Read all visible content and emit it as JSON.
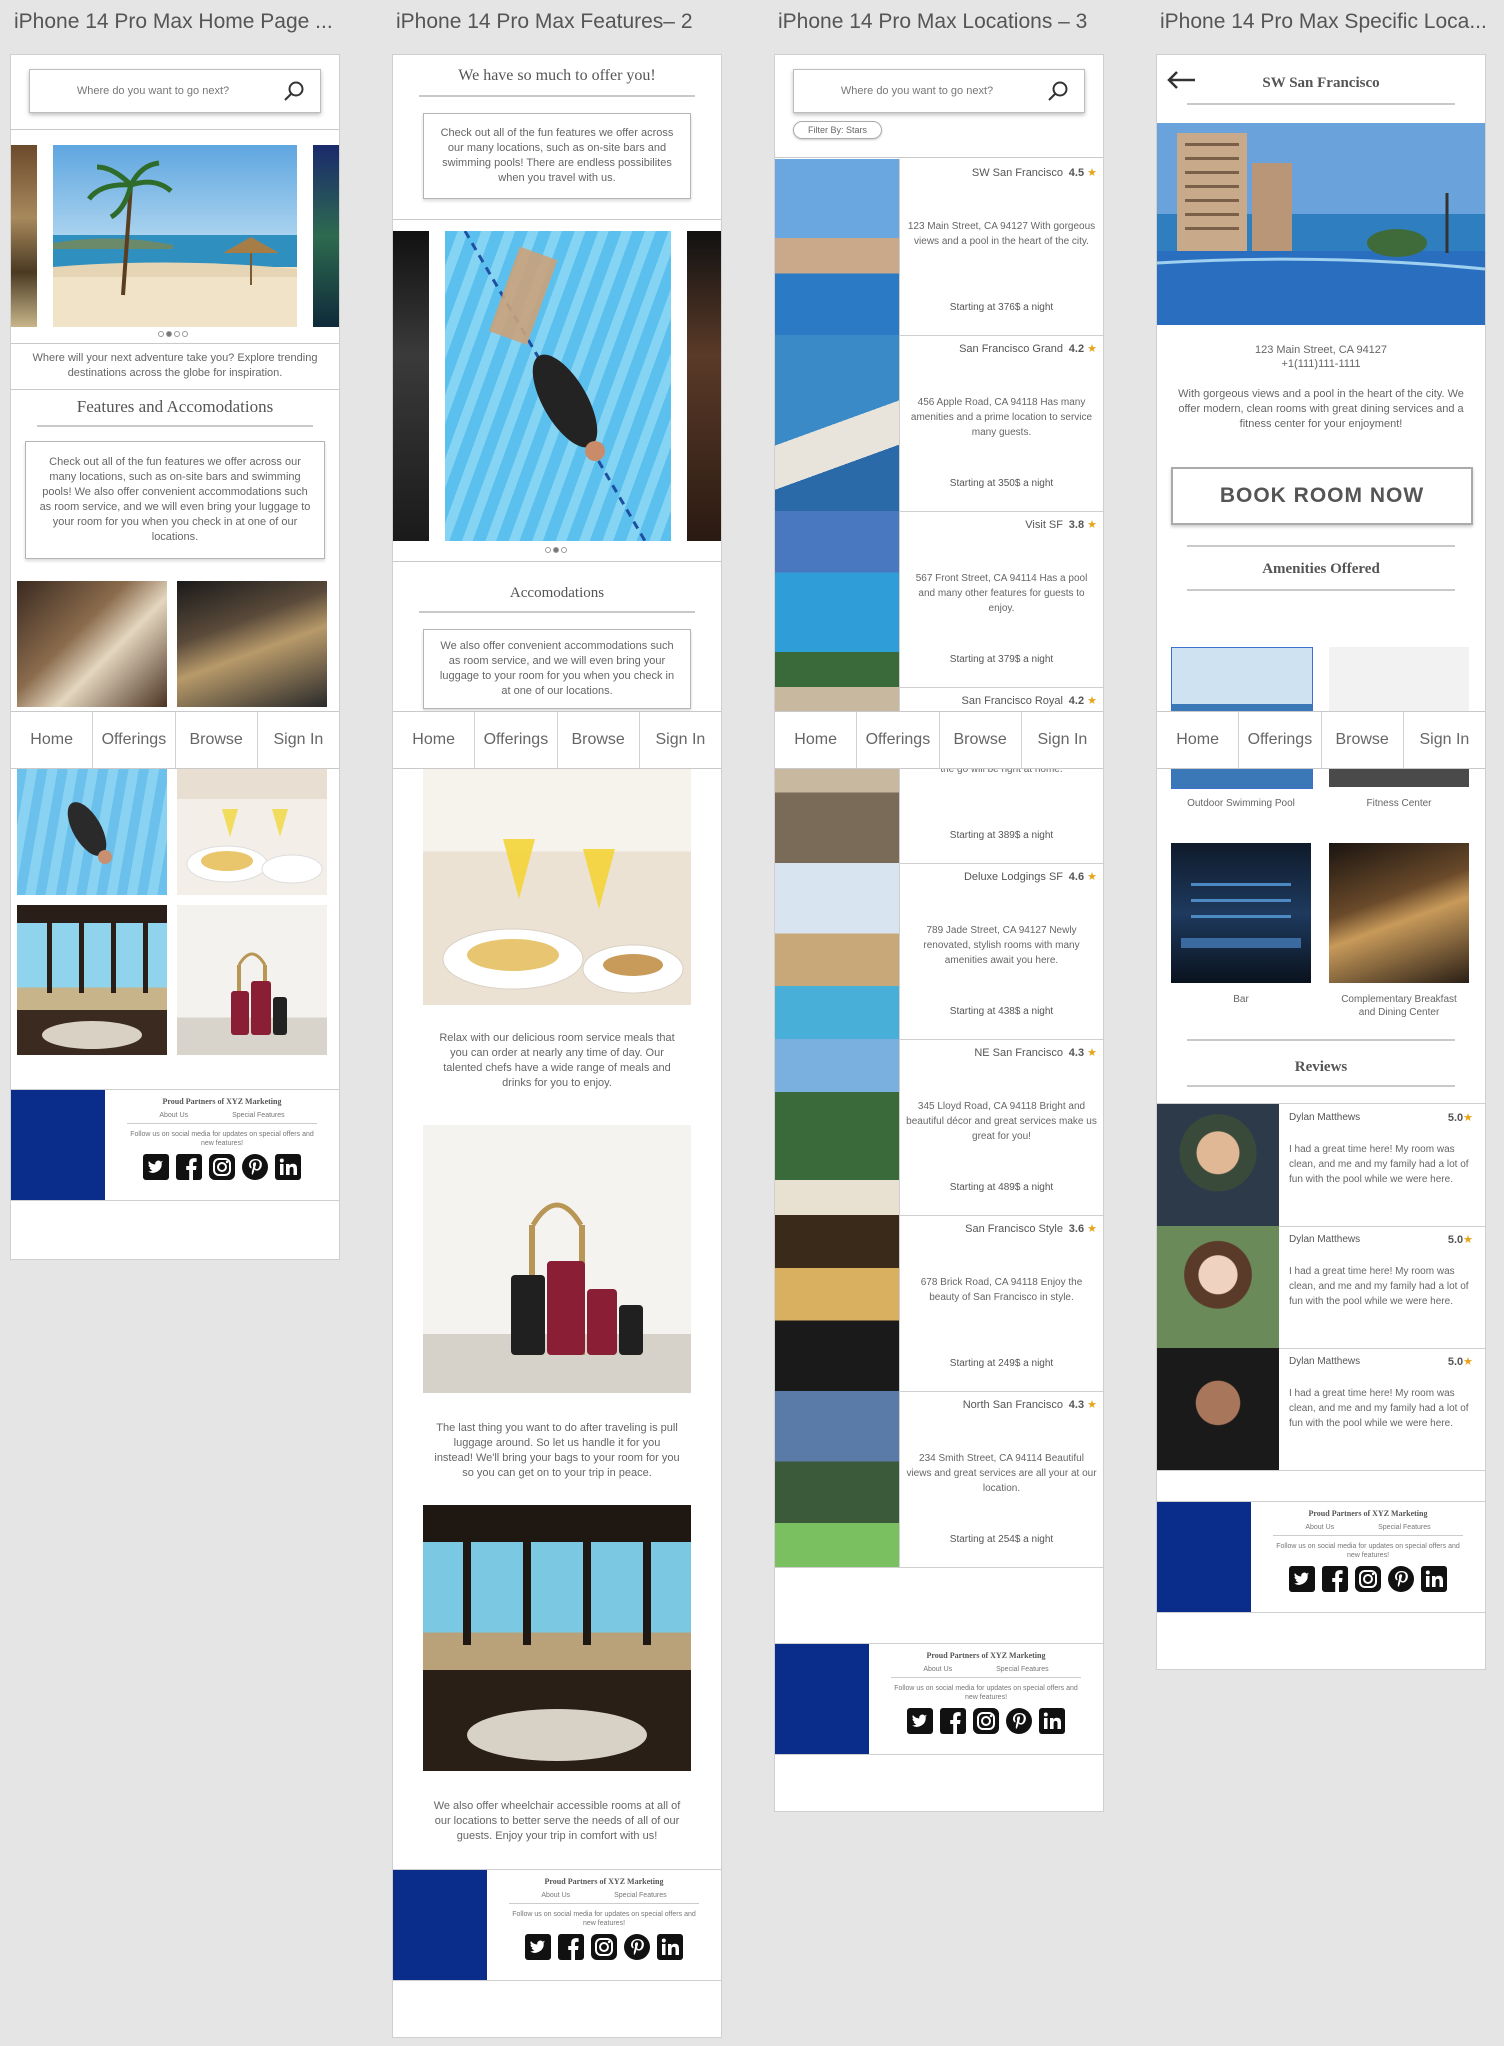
{
  "frame_titles": [
    "iPhone 14 Pro Max Home Page ...",
    "iPhone 14 Pro Max Features– 2",
    "iPhone 14 Pro Max Locations – 3",
    "iPhone 14 Pro Max Specific Loca..."
  ],
  "nav": [
    "Home",
    "Offerings",
    "Browse",
    "Sign In"
  ],
  "footer": {
    "title": "Proud Partners of XYZ Marketing",
    "link_about": "About Us",
    "link_special": "Special Features",
    "follow": "Follow us on social media for updates on special offers and new features!",
    "icons": [
      "twitter-icon",
      "facebook-icon",
      "instagram-icon",
      "pinterest-icon",
      "linkedin-icon"
    ],
    "brand_color": "#0a2d8c"
  },
  "home": {
    "search_placeholder": "Where do you want to go next?",
    "intro": "Where will your next adventure take you? Explore trending destinations across the globe for inspiration.",
    "features_title": "Features and Accomodations",
    "features_text": "Check out all of the fun features we offer across our many locations, such as on-site bars and swimming pools! We also offer convenient accommodations such as room service, and we will even bring your luggage to your room for you when you check in at one of our locations."
  },
  "features": {
    "header": "We have so much to offer you!",
    "intro": "Check out all of the fun features we offer across our many locations, such as on-site bars and swimming pools! There are endless possibilites when you travel with us.",
    "accom_title": "Accomodations",
    "accom_text": "We also offer convenient accommodations such as room service, and we will even bring your luggage to your room for you when you check in at one of our locations.",
    "room_service": "Relax with our delicious room service meals that you can order at nearly any time of day. Our talented chefs have a wide range of meals and drinks for you to enjoy.",
    "luggage": "The last thing you want to do after traveling is pull luggage around. So let us handle it for you instead! We'll bring your bags to your room for you so you can get on to your trip in peace.",
    "wheelchair": "We also offer wheelchair accessible rooms at all of our locations to better serve the needs of all of our guests. Enjoy your trip in comfort with us!"
  },
  "locations": {
    "search_placeholder": "Where do you want to go next?",
    "filter": "Filter By: Stars",
    "list": [
      {
        "name": "SW San Francisco",
        "rating": "4.5",
        "desc": "123 Main Street, CA 94127 With gorgeous views and a pool in the heart of the city.",
        "price": "Starting at 376$ a night"
      },
      {
        "name": "San Francisco Grand",
        "rating": "4.2",
        "desc": "456 Apple Road, CA 94118 Has many amenities and a prime location to service many guests.",
        "price": "Starting at 350$ a night"
      },
      {
        "name": "Visit SF",
        "rating": "3.8",
        "desc": "567 Front Street, CA 94114 Has a pool and many other features for guests to enjoy.",
        "price": "Starting at 379$ a night"
      },
      {
        "name": "San Francisco Royal",
        "rating": "4.2",
        "desc": "With an in-house gym and bar, people on the go will be right at home.",
        "price": "Starting at 389$ a night"
      },
      {
        "name": "Deluxe Lodgings SF",
        "rating": "4.6",
        "desc": "789 Jade Street, CA 94127 Newly renovated, stylish rooms with many amenities await you here.",
        "price": "Starting at 438$ a night"
      },
      {
        "name": "NE San Francisco",
        "rating": "4.3",
        "desc": "345 Lloyd Road, CA 94118 Bright and beautiful décor and great services make us great for you!",
        "price": "Starting at 489$ a night"
      },
      {
        "name": "San Francisco Style",
        "rating": "3.6",
        "desc": "678 Brick Road, CA 94118 Enjoy the beauty of San Francisco in style.",
        "price": "Starting at 249$ a night"
      },
      {
        "name": "North San Francisco",
        "rating": "4.3",
        "desc": "234 Smith Street, CA 94114 Beautiful views and great services are all your at our location.",
        "price": "Starting at 254$ a night"
      }
    ]
  },
  "specific": {
    "title": "SW San Francisco",
    "address": "123 Main Street, CA 94127",
    "phone": "+1(111)111-1111",
    "desc": "With gorgeous views and a pool in the heart of the city. We offer modern, clean rooms with great dining services and a fitness center for your enjoyment!",
    "book": "BOOK ROOM NOW",
    "amenities_title": "Amenities Offered",
    "amenities": [
      "Outdoor Swimming Pool",
      "Fitness Center",
      "Bar",
      "Complementary Breakfast and Dining Center"
    ],
    "reviews_title": "Reviews",
    "reviews": [
      {
        "name": "Dylan Matthews",
        "rating": "5.0",
        "text": "I had a great time here! My room was clean, and me and my family had a lot of fun with the pool while we were here."
      },
      {
        "name": "Dylan Matthews",
        "rating": "5.0",
        "text": "I had a great time here! My room was clean, and me and my family had a lot of fun with the pool while we were here."
      },
      {
        "name": "Dylan Matthews",
        "rating": "5.0",
        "text": "I had a great time here! My room was clean, and me and my family had a lot of fun with the pool while we were here."
      }
    ]
  }
}
